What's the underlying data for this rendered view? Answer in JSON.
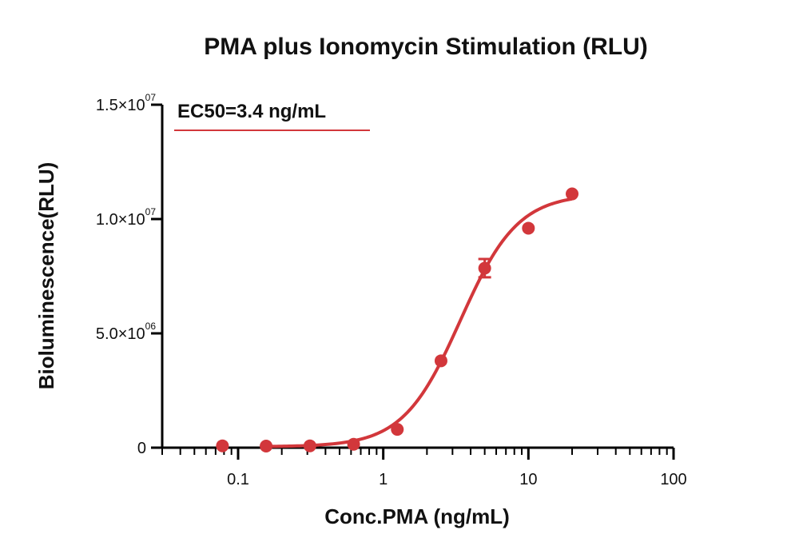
{
  "chart_data": {
    "type": "scatter",
    "title": "PMA plus Ionomycin Stimulation (RLU)",
    "xlabel": "Conc.PMA (ng/mL)",
    "ylabel": "Bioluminescence(RLU)",
    "x_scale": "log",
    "xlim": [
      0.03,
      100
    ],
    "ylim": [
      0,
      15000000
    ],
    "x_ticks": [
      {
        "value": 0.1,
        "label": "0.1"
      },
      {
        "value": 1,
        "label": "1"
      },
      {
        "value": 10,
        "label": "10"
      },
      {
        "value": 100,
        "label": "100"
      }
    ],
    "y_ticks": [
      {
        "value": 0,
        "mantissa": "0",
        "exp": ""
      },
      {
        "value": 5000000,
        "mantissa": "5.0×10",
        "exp": "06"
      },
      {
        "value": 10000000,
        "mantissa": "1.0×10",
        "exp": "07"
      },
      {
        "value": 15000000,
        "mantissa": "1.5×10",
        "exp": "07"
      }
    ],
    "annotation": "EC50=3.4 ng/mL",
    "color": "#d2373b",
    "series": [
      {
        "points": [
          {
            "x": 0.078,
            "y": 80000
          },
          {
            "x": 0.156,
            "y": 70000
          },
          {
            "x": 0.3125,
            "y": 80000
          },
          {
            "x": 0.625,
            "y": 150000
          },
          {
            "x": 1.25,
            "y": 800000
          },
          {
            "x": 2.5,
            "y": 3800000
          },
          {
            "x": 5,
            "y": 7850000,
            "err": 400000
          },
          {
            "x": 10,
            "y": 9600000
          },
          {
            "x": 20,
            "y": 11100000
          }
        ]
      }
    ],
    "fit": {
      "bottom": 40000,
      "top": 11100000,
      "ec50": 3.4,
      "hill": 2.2,
      "x_range": [
        0.15,
        20
      ]
    }
  }
}
